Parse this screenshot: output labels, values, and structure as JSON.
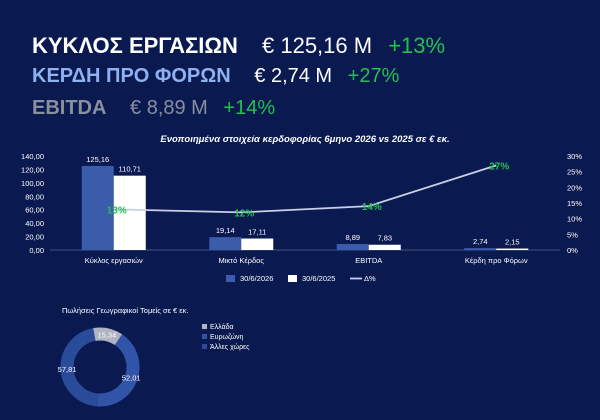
{
  "colors": {
    "background": "#0a1a50",
    "positive": "#22c04e",
    "kpi_label_1": "#ffffff",
    "kpi_label_2": "#8fb1f0",
    "kpi_label_3": "#8a8fa0",
    "bar_2026": "#3b5bab",
    "bar_2025": "#ffffff",
    "line_pct": "#c8cfe6",
    "donut_greece": "#b0b4c2",
    "donut_eurozone": "#3154a8",
    "donut_other": "#2a4b9a"
  },
  "kpis": [
    {
      "label": "ΚΥΚΛΟΣ ΕΡΓΑΣΙΩΝ",
      "value": "€ 125,16 M",
      "change": "+13%"
    },
    {
      "label": "ΚΕΡΔΗ ΠΡΟ ΦΟΡΩΝ",
      "value": "€ 2,74 M",
      "change": "+27%"
    },
    {
      "label": "EBITDA",
      "value": "€ 8,89 M",
      "change": "+14%"
    }
  ],
  "chart_data": [
    {
      "type": "bar",
      "title": "Ενοποιημένα στοιχεία κερδοφορίας 6μηνο 2026 vs 2025 σε € εκ.",
      "categories": [
        "Κύκλος εργασιών",
        "Μικτό Κέρδος",
        "EBITDA",
        "Κέρδη προ Φόρων"
      ],
      "series": [
        {
          "name": "30/6/2026",
          "values": [
            125.16,
            19.14,
            8.89,
            2.74
          ],
          "labels": [
            "125,16",
            "19,14",
            "8,89",
            "2,74"
          ]
        },
        {
          "name": "30/6/2025",
          "values": [
            110.71,
            17.11,
            7.83,
            2.15
          ],
          "labels": [
            "110,71",
            "17,11",
            "7,83",
            "2,15"
          ]
        }
      ],
      "line_series": {
        "name": "Δ%",
        "values": [
          13,
          12,
          14,
          27
        ],
        "labels": [
          "13%",
          "12%",
          "14%",
          "27%"
        ],
        "axis": "right"
      },
      "ylim": [
        0,
        140
      ],
      "yticks": [
        "0,00",
        "20,00",
        "40,00",
        "60,00",
        "80,00",
        "100,00",
        "120,00",
        "140,00"
      ],
      "y2lim": [
        0,
        30
      ],
      "y2ticks": [
        "0%",
        "5%",
        "10%",
        "15%",
        "20%",
        "25%",
        "30%"
      ],
      "legend": "bottom",
      "grid": false
    },
    {
      "type": "pie",
      "title": "Πωλήσεις Γεωγραφικοί Τομείς σε € εκ.",
      "categories": [
        "Ελλάδα",
        "Ευρωζώνη",
        "Άλλες χώρες"
      ],
      "values": [
        15.34,
        52.01,
        57.81
      ],
      "labels": [
        "15,34",
        "52,01",
        "57,81"
      ],
      "legend": "right"
    }
  ]
}
